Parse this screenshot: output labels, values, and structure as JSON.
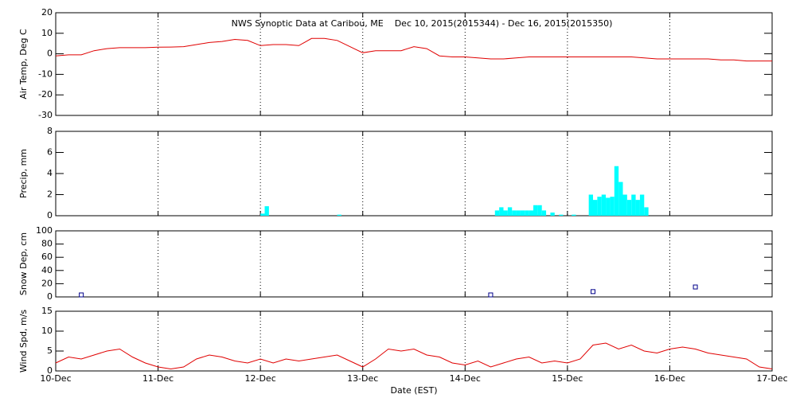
{
  "chart_data": [
    {
      "type": "line",
      "title": "NWS Synoptic Data at Caribou, ME    Dec 10, 2015(2015344) - Dec 16, 2015(2015350)",
      "ylabel": "Air Temp, Deg C",
      "color": "#e00000",
      "grid": true,
      "xlim": [
        0,
        168
      ],
      "xticks": [
        0,
        24,
        48,
        72,
        96,
        120,
        144,
        168
      ],
      "ylim": [
        -30,
        20
      ],
      "yticks": [
        -30,
        -20,
        -10,
        0,
        10,
        20
      ],
      "x": [
        0,
        3,
        6,
        9,
        12,
        15,
        18,
        21,
        24,
        27,
        30,
        33,
        36,
        39,
        42,
        45,
        48,
        51,
        54,
        57,
        60,
        63,
        66,
        69,
        72,
        75,
        78,
        81,
        84,
        87,
        90,
        93,
        96,
        99,
        102,
        105,
        108,
        111,
        114,
        117,
        120,
        123,
        126,
        129,
        132,
        135,
        138,
        141,
        144,
        147,
        150,
        153,
        156,
        159,
        162,
        165,
        168
      ],
      "values": [
        -1,
        -0.5,
        -0.5,
        1.5,
        2.5,
        3,
        3,
        3,
        3.2,
        3.3,
        3.5,
        4.5,
        5.5,
        6,
        7,
        6.5,
        4,
        4.5,
        4.5,
        4,
        7.5,
        7.5,
        6.5,
        3.5,
        0.5,
        1.5,
        1.5,
        1.5,
        3.5,
        2.5,
        -1,
        -1.5,
        -1.5,
        -2,
        -2.5,
        -2.5,
        -2,
        -1.5,
        -1.5,
        -1.5,
        -1.5,
        -1.5,
        -1.5,
        -1.5,
        -1.5,
        -1.5,
        -2,
        -2.5,
        -2.5,
        -2.5,
        -2.5,
        -2.5,
        -3,
        -3,
        -3.5,
        -3.5,
        -3.5
      ]
    },
    {
      "type": "bar",
      "ylabel": "Precip, mm",
      "color": "#00ffff",
      "grid": true,
      "xlim": [
        0,
        168
      ],
      "xticks": [
        0,
        24,
        48,
        72,
        96,
        120,
        144,
        168
      ],
      "ylim": [
        0,
        8
      ],
      "yticks": [
        0,
        2,
        4,
        6,
        8
      ],
      "x": [
        48,
        49,
        66,
        103,
        104,
        105,
        106,
        107,
        108,
        109,
        110,
        111,
        112,
        113,
        114,
        116,
        118,
        121,
        125,
        126,
        127,
        128,
        129,
        130,
        131,
        132,
        133,
        134,
        135,
        136,
        137,
        138
      ],
      "values": [
        0.2,
        0.9,
        0.1,
        0.5,
        0.8,
        0.5,
        0.8,
        0.5,
        0.5,
        0.5,
        0.5,
        0.5,
        1.0,
        1.0,
        0.5,
        0.3,
        0.1,
        0.1,
        2.0,
        1.5,
        1.8,
        2.0,
        1.7,
        1.8,
        4.7,
        3.2,
        2.0,
        1.5,
        2.0,
        1.5,
        2.0,
        0.8
      ]
    },
    {
      "type": "scatter",
      "ylabel": "Snow Dep, cm",
      "color": "#00008b",
      "grid": true,
      "xlim": [
        0,
        168
      ],
      "xticks": [
        0,
        24,
        48,
        72,
        96,
        120,
        144,
        168
      ],
      "ylim": [
        0,
        100
      ],
      "yticks": [
        0,
        20,
        40,
        60,
        80,
        100
      ],
      "x": [
        6,
        102,
        126,
        150
      ],
      "values": [
        0,
        0,
        5,
        12
      ]
    },
    {
      "type": "line",
      "ylabel": "Wind Spd, m/s",
      "xlabel": "Date (EST)",
      "color": "#e00000",
      "grid": true,
      "xlim": [
        0,
        168
      ],
      "xticks": [
        {
          "value": 0,
          "label": "10-Dec"
        },
        {
          "value": 24,
          "label": "11-Dec"
        },
        {
          "value": 48,
          "label": "12-Dec"
        },
        {
          "value": 72,
          "label": "13-Dec"
        },
        {
          "value": 96,
          "label": "14-Dec"
        },
        {
          "value": 120,
          "label": "15-Dec"
        },
        {
          "value": 144,
          "label": "16-Dec"
        },
        {
          "value": 168,
          "label": "17-Dec"
        }
      ],
      "ylim": [
        0,
        15
      ],
      "yticks": [
        0,
        5,
        10,
        15
      ],
      "x": [
        0,
        3,
        6,
        9,
        12,
        15,
        18,
        21,
        24,
        27,
        30,
        33,
        36,
        39,
        42,
        45,
        48,
        51,
        54,
        57,
        60,
        63,
        66,
        69,
        72,
        75,
        78,
        81,
        84,
        87,
        90,
        93,
        96,
        99,
        102,
        105,
        108,
        111,
        114,
        117,
        120,
        123,
        126,
        129,
        132,
        135,
        138,
        141,
        144,
        147,
        150,
        153,
        156,
        159,
        162,
        165,
        168
      ],
      "values": [
        2,
        3.5,
        3,
        4,
        5,
        5.5,
        3.5,
        2,
        1,
        0.5,
        1,
        3,
        4,
        3.5,
        2.5,
        2,
        3,
        2,
        3,
        2.5,
        3,
        3.5,
        4,
        2.5,
        1,
        3,
        5.5,
        5,
        5.5,
        4,
        3.5,
        2,
        1.5,
        2.5,
        1,
        2,
        3,
        3.5,
        2,
        2.5,
        2,
        3,
        6.5,
        7,
        5.5,
        6.5,
        5,
        4.5,
        5.5,
        6,
        5.5,
        4.5,
        4,
        3.5,
        3,
        1,
        0.5
      ]
    }
  ]
}
